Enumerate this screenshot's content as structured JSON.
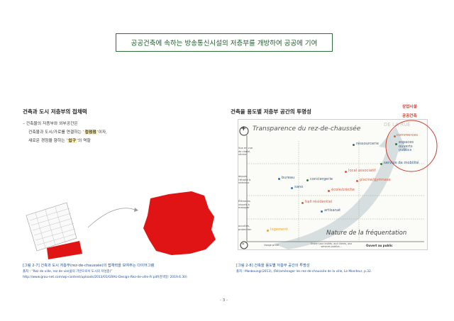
{
  "banner": "공공건축에 속하는 방송통신시설의 저층부를 개방하여 공공에 기여",
  "left": {
    "heading": "건축과 도시 저층부의 접채력",
    "line1": "– 건축물의 저층부와 외부공간은",
    "line2_pre": "건축물과 도시/가로를 연결하는 ‘",
    "line2_hl": "접점점",
    "line2_post": "’이자,",
    "line3_pre": "새로운 경험을 향하는 ‘",
    "line3_hl": "입구",
    "line3_post": "’의 역할",
    "caption": "[그림 2-7] 건축과 도시 저층부(rez-de-chaussée)의 접채력을 보여주는 다이어그램",
    "source1": "출처 : “Rez de ville, rez de vie(삶의 기반으로서 도시의 저성층)”",
    "source2": "http://www.grau-net.com/wp-content/uploads/2013/01/GRAU-Design-Rez-de-ville-Fr.pdf(검색일: 2019.6.30)",
    "colors": {
      "red": "#e01414",
      "gray": "#cfcfcf"
    }
  },
  "right": {
    "heading": "건축을 용도별 저층부 공간의 투명성",
    "label_commercial": "상업시설",
    "label_public": "공공건축",
    "caption": "[그림 2-8] 건축을 용도별 저층부 공간의 투명성",
    "source": "출처 : Masboungi(2013), (Ré)aménager les rez-de-chaussée de la ville, Le Moniteur, p.32.",
    "chart": {
      "title": "Transparence du rez-de-chaussée",
      "corner_label": "DE LA RUE",
      "xaxis_title": "Nature de la fréquentation",
      "plus_symbol": "+",
      "minus_symbol": "–",
      "y_labels": [
        "Vue en vue de clarté, vitrine",
        "depuis l'étroite à intérieur",
        "Éléments visuels à masquer",
        "occultés, protection"
      ],
      "x_labels": [
        "Usage privé",
        "Ouvert aux invités, aux clients, aux services publics...",
        "Ouvert au public"
      ],
      "points": [
        {
          "label": "commerces",
          "color": "#e05a3a"
        },
        {
          "label": "espaces ouverts publics",
          "color": "#2f7a3a"
        },
        {
          "label": "ressourcerie",
          "color": "#2f7a3a"
        },
        {
          "label": "service de mobilité",
          "color": "#2f7a3a"
        },
        {
          "label": "local associatif",
          "color": "#e05a3a"
        },
        {
          "label": "bureau",
          "color": "#3b6fc0"
        },
        {
          "label": "sano",
          "color": "#3b6fc0"
        },
        {
          "label": "conciergerie",
          "color": "#2f7a3a"
        },
        {
          "label": "piscine/gymnase",
          "color": "#e05a3a"
        },
        {
          "label": "école/crèche",
          "color": "#e05a3a"
        },
        {
          "label": "hall résidentiel",
          "color": "#e05a3a"
        },
        {
          "label": "artisanat",
          "color": "#3b6fc0"
        },
        {
          "label": "logement",
          "color": "#e8a23a"
        }
      ]
    }
  },
  "page_number": "- 3 -"
}
